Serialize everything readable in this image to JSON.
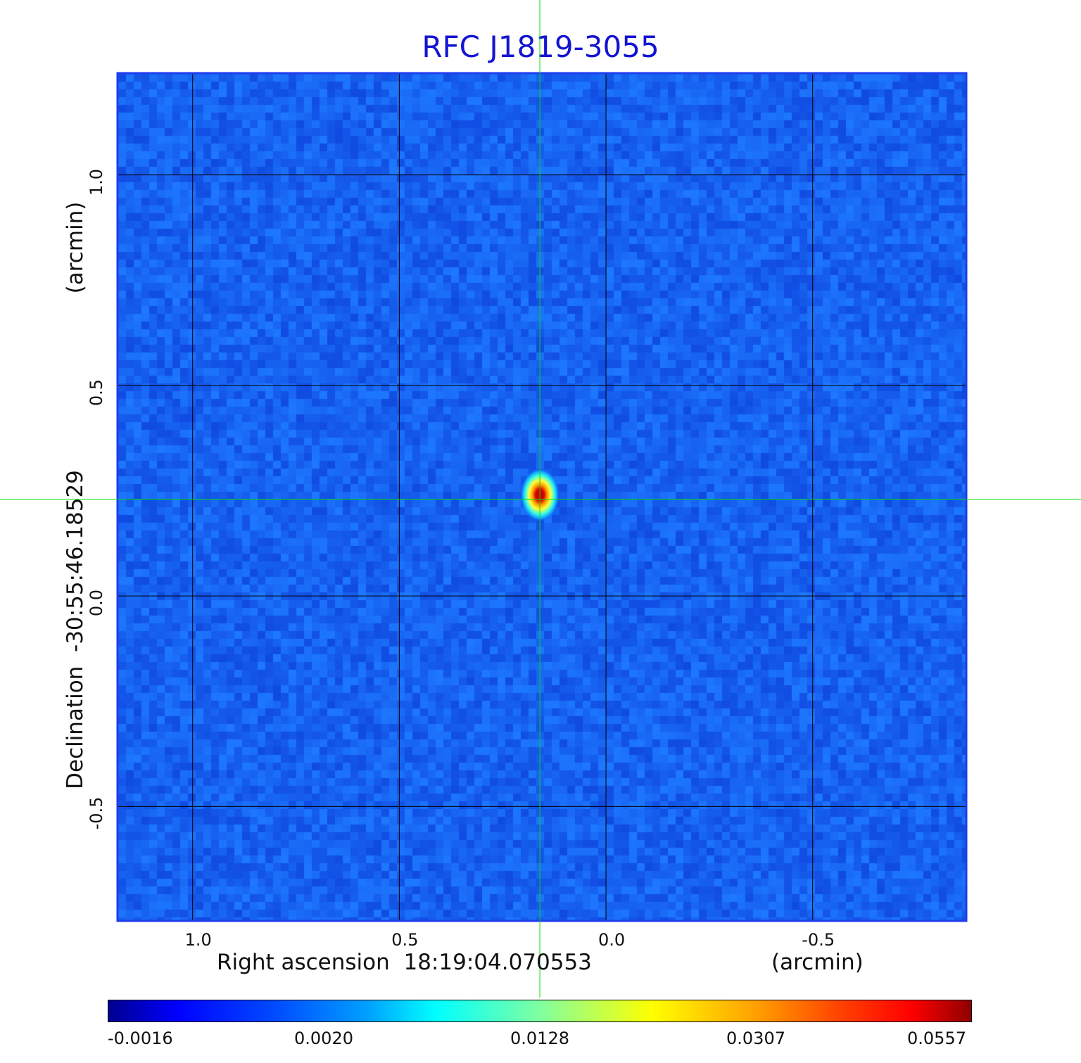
{
  "chart_data": {
    "type": "heatmap",
    "title": "RFC J1819-3055",
    "xlabel": "Right ascension  18:19:04.070553",
    "xunit": "(arcmin)",
    "ylabel": "Declination  -30:55:46.18529",
    "yunit": "(arcmin)",
    "x_axis": {
      "reversed": true,
      "range": [
        1.18,
        -0.87
      ],
      "ticks": [
        1.0,
        0.5,
        0.0,
        -0.5
      ],
      "tick_labels": [
        "1.0",
        "0.5",
        "0.0",
        "-0.5"
      ]
    },
    "y_axis": {
      "range": [
        -0.77,
        1.24
      ],
      "ticks": [
        -0.5,
        0.0,
        0.5,
        1.0
      ],
      "tick_labels": [
        "-0.5",
        "0.0",
        "0.5",
        "1.0"
      ]
    },
    "grid": true,
    "colormap": "jet",
    "colorbar": {
      "placement": "bottom",
      "tick_labels": [
        "-0.0016",
        "0.0020",
        "0.0128",
        "0.0307",
        "0.0557"
      ]
    },
    "source": {
      "x_arcmin": 0.16,
      "y_arcmin": 0.24,
      "peak": 0.0557
    },
    "crosshair": {
      "x_arcmin": 0.16,
      "y_arcmin": 0.23,
      "color": "#00dd00"
    },
    "background_level": 0.0,
    "frame_color": "#1e3cf0"
  }
}
